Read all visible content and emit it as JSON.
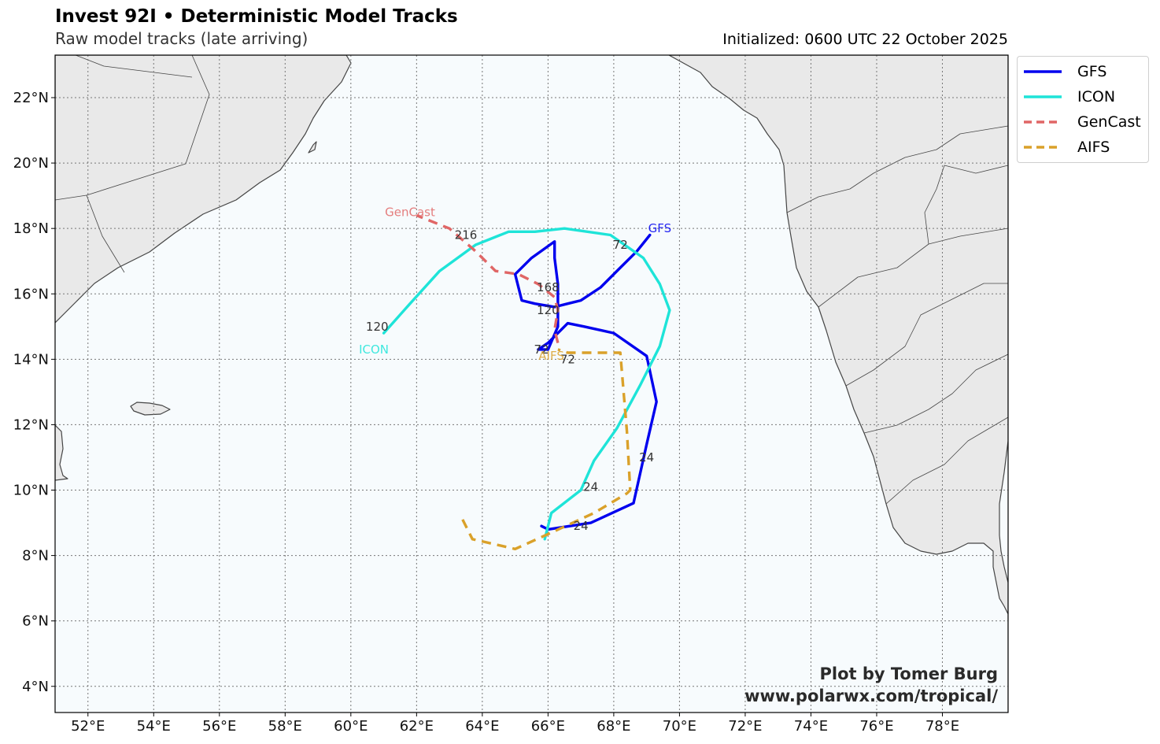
{
  "header": {
    "title": "Invest 92I • Deterministic Model Tracks",
    "subtitle": "Raw model tracks (late arriving)",
    "initialized": "Initialized: 0600 UTC 22 October 2025"
  },
  "credit": {
    "line1": "Plot by Tomer Burg",
    "line2": "www.polarwx.com/tropical/"
  },
  "map": {
    "extent": {
      "lon": [
        51,
        80
      ],
      "lat": [
        3.2,
        23.3
      ]
    },
    "colors": {
      "ocean": "#f7fbfd",
      "land": "#e9e9e9",
      "coast": "#454545",
      "grid": "#777777"
    },
    "lon_ticks": [
      {
        "value": 52,
        "label": "52°E"
      },
      {
        "value": 54,
        "label": "54°E"
      },
      {
        "value": 56,
        "label": "56°E"
      },
      {
        "value": 58,
        "label": "58°E"
      },
      {
        "value": 60,
        "label": "60°E"
      },
      {
        "value": 62,
        "label": "62°E"
      },
      {
        "value": 64,
        "label": "64°E"
      },
      {
        "value": 66,
        "label": "66°E"
      },
      {
        "value": 68,
        "label": "68°E"
      },
      {
        "value": 70,
        "label": "70°E"
      },
      {
        "value": 72,
        "label": "72°E"
      },
      {
        "value": 74,
        "label": "74°E"
      },
      {
        "value": 76,
        "label": "76°E"
      },
      {
        "value": 78,
        "label": "78°E"
      }
    ],
    "lat_ticks": [
      {
        "value": 4,
        "label": "4°N"
      },
      {
        "value": 6,
        "label": "6°N"
      },
      {
        "value": 8,
        "label": "8°N"
      },
      {
        "value": 10,
        "label": "10°N"
      },
      {
        "value": 12,
        "label": "12°N"
      },
      {
        "value": 14,
        "label": "14°N"
      },
      {
        "value": 16,
        "label": "16°N"
      },
      {
        "value": 18,
        "label": "18°N"
      },
      {
        "value": 20,
        "label": "20°N"
      },
      {
        "value": 22,
        "label": "22°N"
      }
    ]
  },
  "tracks": [
    {
      "name": "GFS",
      "color": "#0000ee",
      "dashed": false,
      "points": [
        [
          65.8,
          8.9
        ],
        [
          66.0,
          8.8
        ],
        [
          67.3,
          9.0
        ],
        [
          68.6,
          9.6
        ],
        [
          69.0,
          11.4
        ],
        [
          69.3,
          12.7
        ],
        [
          69.0,
          14.1
        ],
        [
          68.0,
          14.8
        ],
        [
          67.1,
          15.0
        ],
        [
          66.6,
          15.1
        ],
        [
          66.0,
          14.5
        ],
        [
          65.7,
          14.3
        ],
        [
          66.0,
          14.3
        ],
        [
          66.3,
          15.0
        ],
        [
          66.3,
          16.3
        ],
        [
          66.2,
          17.1
        ],
        [
          66.2,
          17.6
        ],
        [
          65.5,
          17.1
        ],
        [
          65.0,
          16.6
        ],
        [
          65.2,
          15.8
        ],
        [
          65.6,
          15.7
        ],
        [
          66.2,
          15.6
        ],
        [
          66.6,
          15.7
        ],
        [
          67.0,
          15.8
        ],
        [
          67.6,
          16.2
        ],
        [
          68.2,
          16.8
        ],
        [
          68.7,
          17.3
        ],
        [
          69.1,
          17.8
        ]
      ],
      "labels": [
        {
          "text": "24",
          "lon": 69.0,
          "lat": 11.0
        },
        {
          "text": "72",
          "lon": 65.8,
          "lat": 14.3
        },
        {
          "text": "120",
          "lon": 66.0,
          "lat": 15.5
        }
      ],
      "start_label": {
        "text": "GFS",
        "lon": 69.4,
        "lat": 18.0
      }
    },
    {
      "name": "ICON",
      "color": "#1ee4d8",
      "dashed": false,
      "points": [
        [
          65.9,
          8.5
        ],
        [
          66.1,
          9.3
        ],
        [
          67.0,
          10.0
        ],
        [
          67.4,
          10.9
        ],
        [
          68.1,
          11.9
        ],
        [
          68.8,
          13.2
        ],
        [
          69.4,
          14.4
        ],
        [
          69.7,
          15.5
        ],
        [
          69.4,
          16.3
        ],
        [
          68.9,
          17.1
        ],
        [
          67.9,
          17.8
        ],
        [
          66.5,
          18.0
        ],
        [
          65.6,
          17.9
        ],
        [
          64.8,
          17.9
        ],
        [
          63.8,
          17.5
        ],
        [
          62.7,
          16.7
        ],
        [
          61.8,
          15.7
        ],
        [
          61.0,
          14.8
        ]
      ],
      "labels": [
        {
          "text": "24",
          "lon": 67.3,
          "lat": 10.1
        },
        {
          "text": "72",
          "lon": 68.2,
          "lat": 17.5
        },
        {
          "text": "120",
          "lon": 60.8,
          "lat": 15.0
        }
      ],
      "start_label": {
        "text": "ICON",
        "lon": 60.7,
        "lat": 14.3
      }
    },
    {
      "name": "GenCast",
      "color": "#e06666",
      "dashed": true,
      "points": [
        [
          66.3,
          14.5
        ],
        [
          66.2,
          14.9
        ],
        [
          66.3,
          15.5
        ],
        [
          66.2,
          15.9
        ],
        [
          65.7,
          16.3
        ],
        [
          65.1,
          16.6
        ],
        [
          64.4,
          16.7
        ],
        [
          63.8,
          17.3
        ],
        [
          63.0,
          18.0
        ],
        [
          62.0,
          18.4
        ]
      ],
      "labels": [
        {
          "text": "168",
          "lon": 66.0,
          "lat": 16.2
        },
        {
          "text": "216",
          "lon": 63.5,
          "lat": 17.8
        }
      ],
      "start_label": {
        "text": "GenCast",
        "lon": 61.8,
        "lat": 18.5
      }
    },
    {
      "name": "AIFS",
      "color": "#daa12a",
      "dashed": true,
      "points": [
        [
          63.4,
          9.1
        ],
        [
          63.7,
          8.5
        ],
        [
          65.0,
          8.2
        ],
        [
          66.1,
          8.7
        ],
        [
          67.4,
          9.3
        ],
        [
          68.4,
          9.9
        ],
        [
          68.5,
          10.0
        ],
        [
          68.4,
          11.8
        ],
        [
          68.2,
          14.2
        ],
        [
          66.6,
          14.2
        ],
        [
          66.3,
          14.3
        ]
      ],
      "labels": [
        {
          "text": "24",
          "lon": 67.0,
          "lat": 8.9
        },
        {
          "text": "72",
          "lon": 66.6,
          "lat": 14.0
        }
      ],
      "start_label": {
        "text": "AIFS",
        "lon": 66.1,
        "lat": 14.1
      }
    }
  ],
  "legend": {
    "items": [
      {
        "label": "GFS",
        "color": "#0000ee",
        "dashed": false
      },
      {
        "label": "ICON",
        "color": "#1ee4d8",
        "dashed": false
      },
      {
        "label": "GenCast",
        "color": "#e06666",
        "dashed": true
      },
      {
        "label": "AIFS",
        "color": "#daa12a",
        "dashed": true
      }
    ]
  }
}
